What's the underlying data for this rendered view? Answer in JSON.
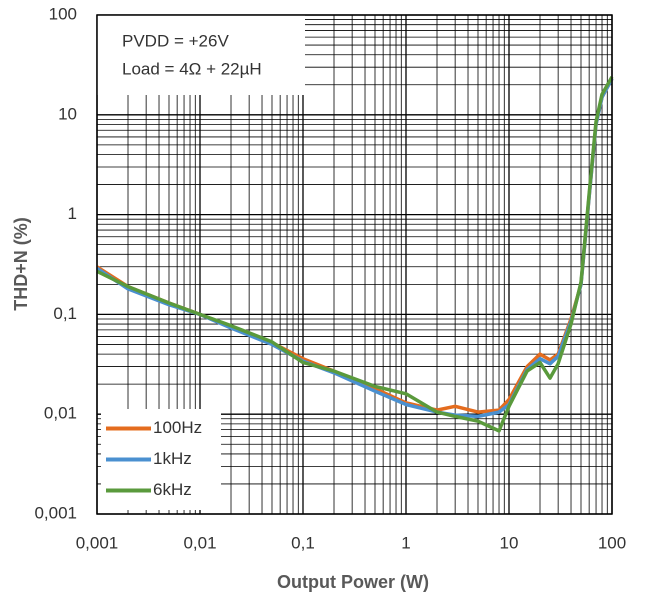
{
  "chart_data": {
    "type": "line",
    "x_label": "Output Power (W)",
    "y_label": "THD+N (%)",
    "annotations": [
      "PVDD = +26V",
      "Load = 4Ω + 22µH"
    ],
    "x": [
      0.001,
      0.002,
      0.005,
      0.01,
      0.02,
      0.05,
      0.1,
      0.2,
      0.5,
      1,
      2,
      3,
      5,
      8,
      10,
      15,
      20,
      25,
      30,
      40,
      50,
      60,
      70,
      80,
      100
    ],
    "series": [
      {
        "name": "100Hz",
        "color": "#e46c1e",
        "values": [
          0.3,
          0.19,
          0.13,
          0.1,
          0.075,
          0.052,
          0.036,
          0.027,
          0.018,
          0.013,
          0.011,
          0.012,
          0.0105,
          0.011,
          0.014,
          0.03,
          0.04,
          0.035,
          0.04,
          0.09,
          0.2,
          1.5,
          8,
          15,
          23
        ]
      },
      {
        "name": "1kHz",
        "color": "#4a90d0",
        "values": [
          0.29,
          0.18,
          0.125,
          0.1,
          0.073,
          0.05,
          0.034,
          0.026,
          0.017,
          0.0125,
          0.0105,
          0.0098,
          0.0095,
          0.0105,
          0.0125,
          0.028,
          0.036,
          0.032,
          0.038,
          0.085,
          0.2,
          1.5,
          8,
          15,
          23
        ]
      },
      {
        "name": "6kHz",
        "color": "#5a9a3c",
        "values": [
          0.27,
          0.19,
          0.13,
          0.1,
          0.077,
          0.053,
          0.033,
          0.027,
          0.019,
          0.016,
          0.0105,
          0.0095,
          0.0085,
          0.0068,
          0.012,
          0.027,
          0.033,
          0.023,
          0.032,
          0.08,
          0.21,
          1.6,
          8.5,
          16,
          24
        ]
      }
    ],
    "xlog": true,
    "ylog": true,
    "xlim": [
      0.001,
      100
    ],
    "ylim": [
      0.001,
      100
    ],
    "xticks": [
      {
        "value": 0.001,
        "label": "0,001"
      },
      {
        "value": 0.01,
        "label": "0,01"
      },
      {
        "value": 0.1,
        "label": "0,1"
      },
      1,
      10,
      100
    ],
    "yticks": [
      {
        "value": 0.001,
        "label": "0,001"
      },
      {
        "value": 0.01,
        "label": "0,01"
      },
      {
        "value": 0.1,
        "label": "0,1"
      },
      1,
      10,
      100
    ],
    "grid": true,
    "minor_grid": true,
    "legend": "lower left"
  }
}
